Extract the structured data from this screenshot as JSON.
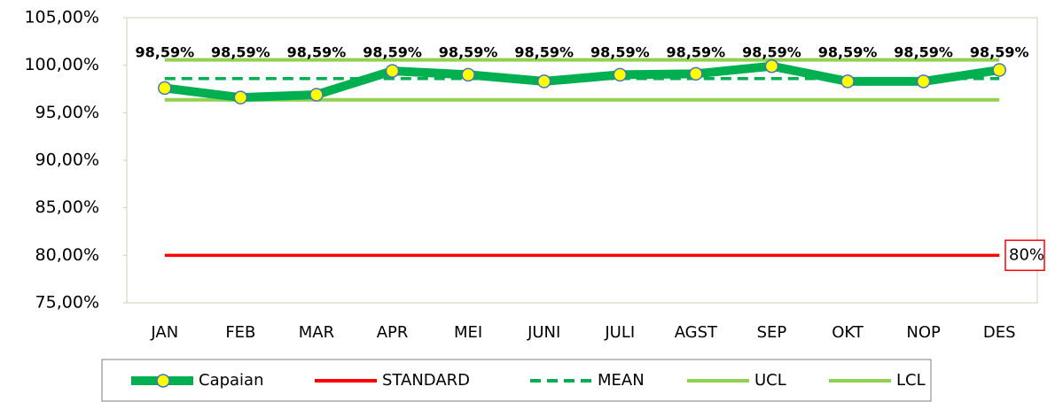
{
  "chart_data": {
    "type": "line",
    "categories": [
      "JAN",
      "FEB",
      "MAR",
      "APR",
      "MEI",
      "JUNI",
      "JULI",
      "AGST",
      "SEP",
      "OKT",
      "NOP",
      "DES"
    ],
    "series": [
      {
        "name": "Capaian",
        "color": "#00b050",
        "marker_color": "#ffff00",
        "values": [
          97.6,
          96.6,
          96.9,
          99.4,
          99.0,
          98.3,
          99.0,
          99.1,
          99.9,
          98.3,
          98.3,
          99.5
        ]
      },
      {
        "name": "STANDARD",
        "color": "#ff0000",
        "values": [
          80,
          80,
          80,
          80,
          80,
          80,
          80,
          80,
          80,
          80,
          80,
          80
        ],
        "value_labels": [
          null,
          null,
          null,
          null,
          null,
          null,
          null,
          null,
          null,
          null,
          null,
          "80%"
        ]
      },
      {
        "name": "MEAN",
        "color": "#00b050",
        "dashed": true,
        "values": [
          98.59,
          98.59,
          98.59,
          98.59,
          98.59,
          98.59,
          98.59,
          98.59,
          98.59,
          98.59,
          98.59,
          98.59
        ],
        "value_labels": [
          "98,59%",
          "98,59%",
          "98,59%",
          "98,59%",
          "98,59%",
          "98,59%",
          "98,59%",
          "98,59%",
          "98,59%",
          "98,59%",
          "98,59%",
          "98,59%"
        ]
      },
      {
        "name": "UCL",
        "color": "#92d050",
        "values": [
          100.56,
          100.56,
          100.56,
          100.56,
          100.56,
          100.56,
          100.56,
          100.56,
          100.56,
          100.56,
          100.56,
          100.56
        ]
      },
      {
        "name": "LCL",
        "color": "#92d050",
        "values": [
          96.36,
          96.36,
          96.36,
          96.36,
          96.36,
          96.36,
          96.36,
          96.36,
          96.36,
          96.36,
          96.36,
          96.36
        ]
      }
    ],
    "ylim": [
      75,
      105
    ],
    "yticks": [
      {
        "value": 75,
        "label": "75,00%"
      },
      {
        "value": 80,
        "label": "80,00%"
      },
      {
        "value": 85,
        "label": "85,00%"
      },
      {
        "value": 90,
        "label": "90,00%"
      },
      {
        "value": 95,
        "label": "95,00%"
      },
      {
        "value": 100,
        "label": "100,00%"
      },
      {
        "value": 105,
        "label": "105,00%"
      }
    ],
    "legend": "bottom"
  }
}
